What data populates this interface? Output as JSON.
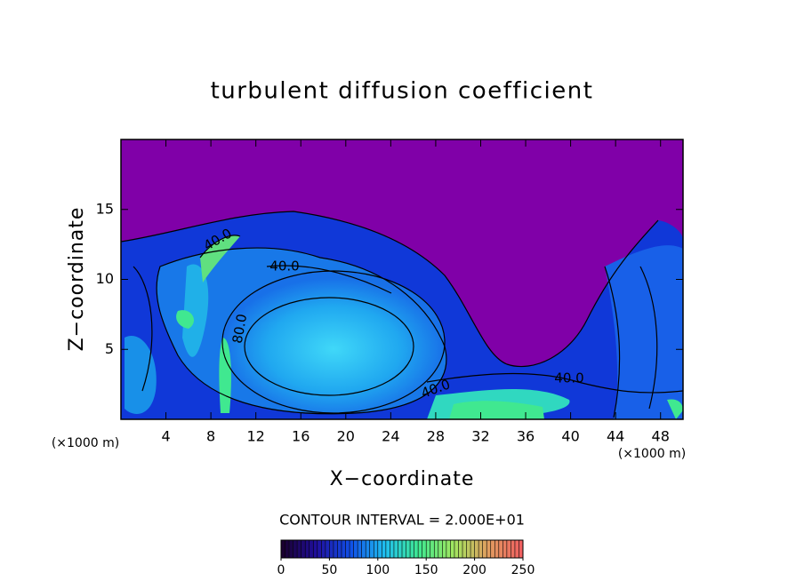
{
  "chart_data": {
    "type": "contour",
    "title": "turbulent diffusion coefficient",
    "x_label": "X−coordinate",
    "y_label": "Z−coordinate",
    "x_unit": "(×1000 m)",
    "y_unit": "(×1000 m)",
    "xlim": [
      0,
      50
    ],
    "xticks": [
      4,
      8,
      12,
      16,
      20,
      24,
      28,
      32,
      36,
      40,
      44,
      48
    ],
    "ylim": [
      0,
      20
    ],
    "yticks": [
      5,
      10,
      15
    ],
    "contour_labels": [
      "40.0",
      "40.0",
      "80.0",
      "40.0",
      "40.0"
    ],
    "contour_interval": "CONTOUR INTERVAL = 2.000E+01",
    "colorbar": {
      "lim": [
        0,
        250
      ],
      "ticks": [
        0,
        50,
        100,
        150,
        200,
        250
      ]
    },
    "colormap": [
      "#1a0030",
      "#2010a0",
      "#1050e8",
      "#20c0f0",
      "#40e890",
      "#a0e860",
      "#e0a060",
      "#f06060"
    ]
  }
}
